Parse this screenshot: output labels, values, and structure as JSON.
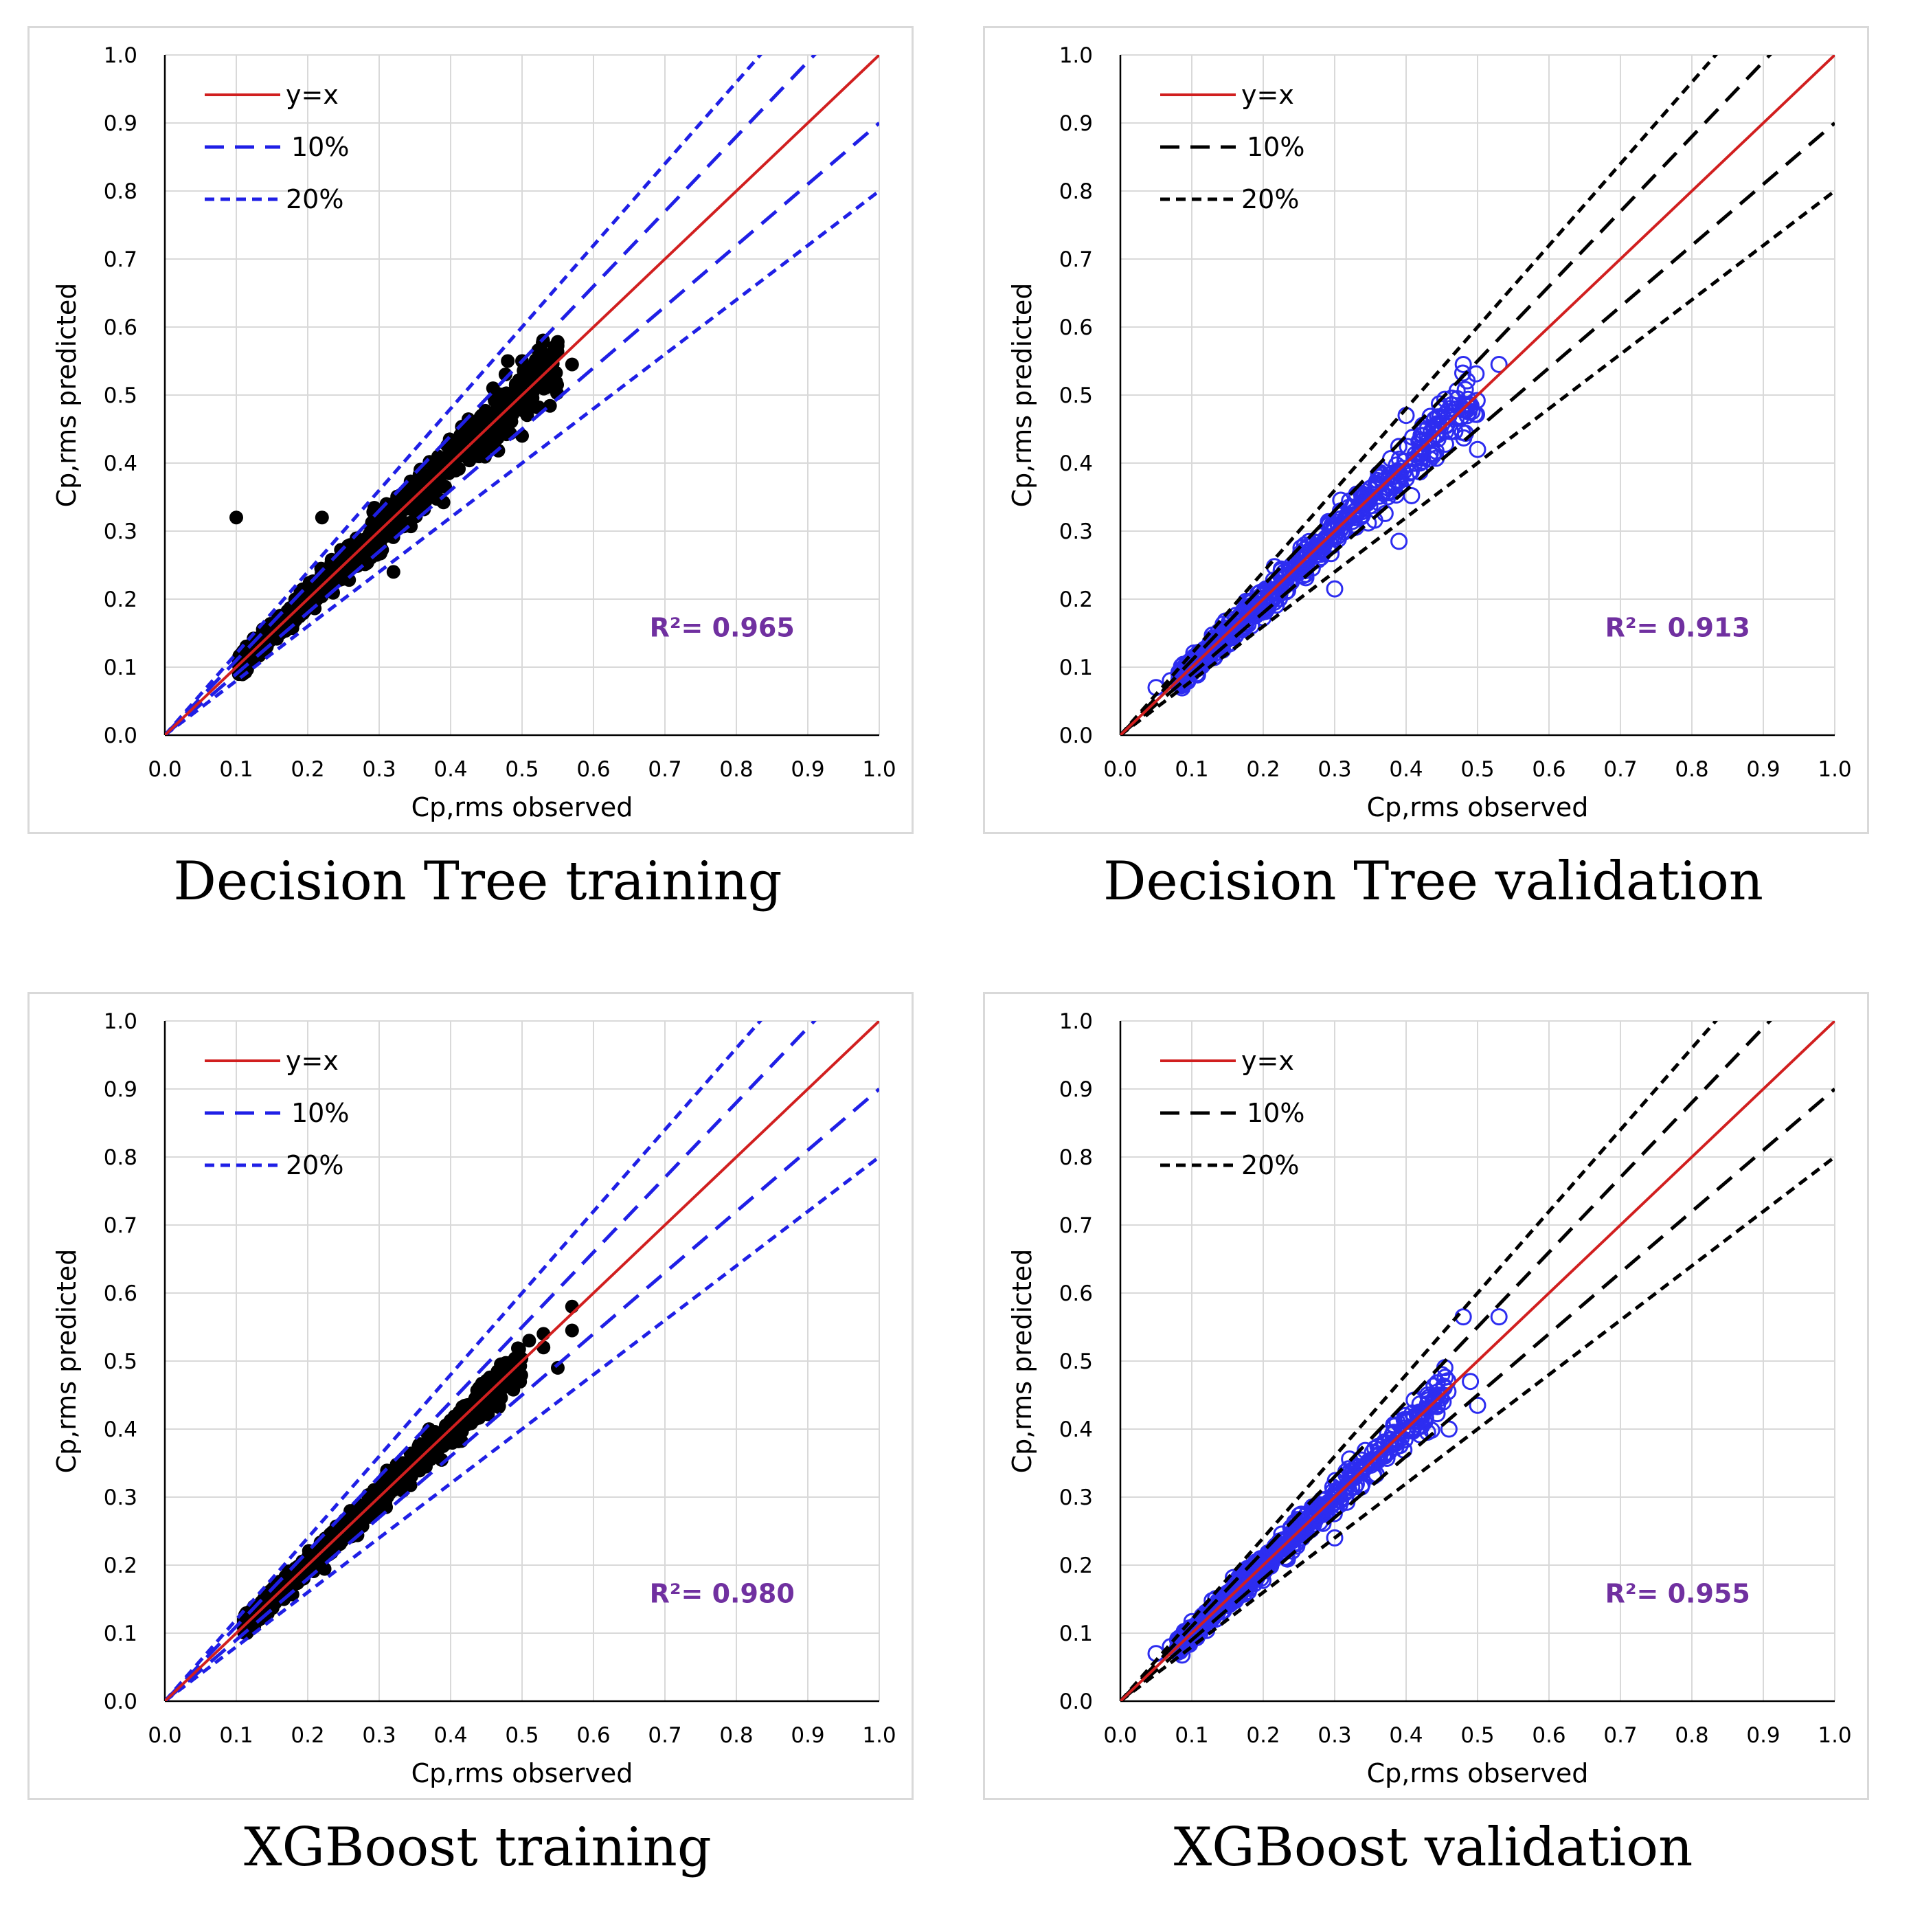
{
  "chart_data": [
    {
      "type": "scatter",
      "title": "Decision Tree training",
      "xlabel": "Cp,rms observed",
      "ylabel": "Cp,rms  predicted",
      "xlim": [
        0,
        1
      ],
      "ylim": [
        0,
        1
      ],
      "xticks": [
        "0.0",
        "0.1",
        "0.2",
        "0.3",
        "0.4",
        "0.5",
        "0.6",
        "0.7",
        "0.8",
        "0.9",
        "1.0"
      ],
      "yticks": [
        "0.0",
        "0.1",
        "0.2",
        "0.3",
        "0.4",
        "0.5",
        "0.6",
        "0.7",
        "0.8",
        "0.9",
        "1.0"
      ],
      "grid": true,
      "legend": {
        "position": "top-left",
        "entries": [
          "y=x",
          "10%",
          "20%"
        ]
      },
      "annotation": "R²= 0.965",
      "bands": {
        "line_color": "#d11f1f",
        "band_color": "#1f1fe6"
      },
      "marker": {
        "color": "#000000",
        "style": "filled"
      },
      "points_cloud": {
        "x_range": [
          0.08,
          0.55
        ],
        "spread": 0.13,
        "count": 950,
        "seed": 11
      },
      "outliers": [
        [
          0.48,
          0.55
        ],
        [
          0.5,
          0.55
        ],
        [
          0.52,
          0.55
        ],
        [
          0.57,
          0.545
        ],
        [
          0.1,
          0.32
        ],
        [
          0.22,
          0.32
        ],
        [
          0.32,
          0.24
        ],
        [
          0.44,
          0.41
        ],
        [
          0.48,
          0.45
        ],
        [
          0.5,
          0.44
        ]
      ]
    },
    {
      "type": "scatter",
      "title": "Decision Tree validation",
      "xlabel": "Cp,rms observed",
      "ylabel": "Cp,rms  predicted",
      "xlim": [
        0,
        1
      ],
      "ylim": [
        0,
        1
      ],
      "xticks": [
        "0.0",
        "0.1",
        "0.2",
        "0.3",
        "0.4",
        "0.5",
        "0.6",
        "0.7",
        "0.8",
        "0.9",
        "1.0"
      ],
      "yticks": [
        "0.0",
        "0.1",
        "0.2",
        "0.3",
        "0.4",
        "0.5",
        "0.6",
        "0.7",
        "0.8",
        "0.9",
        "1.0"
      ],
      "grid": true,
      "legend": {
        "position": "top-left",
        "entries": [
          "y=x",
          "10%",
          "20%"
        ]
      },
      "annotation": "R²= 0.913",
      "bands": {
        "line_color": "#d11f1f",
        "band_color": "#000000"
      },
      "marker": {
        "color": "#2d2df0",
        "style": "open"
      },
      "points_cloud": {
        "x_range": [
          0.06,
          0.5
        ],
        "spread": 0.15,
        "count": 620,
        "seed": 23
      },
      "outliers": [
        [
          0.48,
          0.545
        ],
        [
          0.53,
          0.545
        ],
        [
          0.39,
          0.285
        ],
        [
          0.3,
          0.215
        ],
        [
          0.46,
          0.47
        ],
        [
          0.5,
          0.42
        ],
        [
          0.4,
          0.47
        ],
        [
          0.05,
          0.07
        ],
        [
          0.07,
          0.08
        ]
      ]
    },
    {
      "type": "scatter",
      "title": "XGBoost training",
      "xlabel": "Cp,rms observed",
      "ylabel": "Cp,rms  predicted",
      "xlim": [
        0,
        1
      ],
      "ylim": [
        0,
        1
      ],
      "xticks": [
        "0.0",
        "0.1",
        "0.2",
        "0.3",
        "0.4",
        "0.5",
        "0.6",
        "0.7",
        "0.8",
        "0.9",
        "1.0"
      ],
      "yticks": [
        "0.0",
        "0.1",
        "0.2",
        "0.3",
        "0.4",
        "0.5",
        "0.6",
        "0.7",
        "0.8",
        "0.9",
        "1.0"
      ],
      "grid": true,
      "legend": {
        "position": "top-left",
        "entries": [
          "y=x",
          "10%",
          "20%"
        ]
      },
      "annotation": "R²= 0.980",
      "bands": {
        "line_color": "#d11f1f",
        "band_color": "#1f1fe6"
      },
      "marker": {
        "color": "#000000",
        "style": "filled"
      },
      "points_cloud": {
        "x_range": [
          0.09,
          0.5
        ],
        "spread": 0.09,
        "count": 950,
        "seed": 37
      },
      "outliers": [
        [
          0.53,
          0.54
        ],
        [
          0.57,
          0.58
        ],
        [
          0.57,
          0.545
        ],
        [
          0.55,
          0.49
        ],
        [
          0.51,
          0.53
        ],
        [
          0.53,
          0.52
        ],
        [
          0.48,
          0.49
        ],
        [
          0.45,
          0.44
        ]
      ]
    },
    {
      "type": "scatter",
      "title": "XGBoost validation",
      "xlabel": "Cp,rms observed",
      "ylabel": "Cp,rms  predicted",
      "xlim": [
        0,
        1
      ],
      "ylim": [
        0,
        1
      ],
      "xticks": [
        "0.0",
        "0.1",
        "0.2",
        "0.3",
        "0.4",
        "0.5",
        "0.6",
        "0.7",
        "0.8",
        "0.9",
        "1.0"
      ],
      "yticks": [
        "0.0",
        "0.1",
        "0.2",
        "0.3",
        "0.4",
        "0.5",
        "0.6",
        "0.7",
        "0.8",
        "0.9",
        "1.0"
      ],
      "grid": true,
      "legend": {
        "position": "top-left",
        "entries": [
          "y=x",
          "10%",
          "20%"
        ]
      },
      "annotation": "R²= 0.955",
      "bands": {
        "line_color": "#d11f1f",
        "band_color": "#000000"
      },
      "marker": {
        "color": "#2d2df0",
        "style": "open"
      },
      "points_cloud": {
        "x_range": [
          0.06,
          0.46
        ],
        "spread": 0.1,
        "count": 620,
        "seed": 51
      },
      "outliers": [
        [
          0.48,
          0.565
        ],
        [
          0.53,
          0.565
        ],
        [
          0.49,
          0.47
        ],
        [
          0.5,
          0.435
        ],
        [
          0.43,
          0.45
        ],
        [
          0.46,
          0.4
        ],
        [
          0.45,
          0.48
        ],
        [
          0.05,
          0.07
        ],
        [
          0.07,
          0.08
        ],
        [
          0.3,
          0.24
        ]
      ]
    }
  ]
}
